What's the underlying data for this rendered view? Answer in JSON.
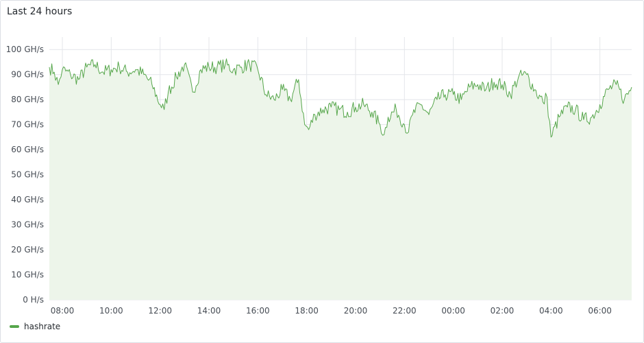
{
  "panel": {
    "title": "Last 24 hours"
  },
  "colors": {
    "series": "#56a64b",
    "fill": "#edf5ea",
    "grid": "#e4e6ea",
    "text": "#464c54"
  },
  "chart_data": {
    "type": "area",
    "title": "Last 24 hours",
    "xlabel": "",
    "ylabel": "",
    "x_range": [
      "07:28",
      "07:18 (+1 day)"
    ],
    "ylim": [
      0,
      105
    ],
    "y_ticks": [
      0,
      10,
      20,
      30,
      40,
      50,
      60,
      70,
      80,
      90,
      100
    ],
    "y_tick_labels": [
      "0 H/s",
      "10 GH/s",
      "20 GH/s",
      "30 GH/s",
      "40 GH/s",
      "50 GH/s",
      "60 GH/s",
      "70 GH/s",
      "80 GH/s",
      "90 GH/s",
      "100 GH/s"
    ],
    "x_tick_labels": [
      "08:00",
      "10:00",
      "12:00",
      "14:00",
      "16:00",
      "18:00",
      "20:00",
      "22:00",
      "00:00",
      "02:00",
      "04:00",
      "06:00"
    ],
    "grid": true,
    "legend": "bottom-left",
    "series": [
      {
        "name": "hashrate",
        "unit": "GH/s",
        "x": [
          "07:28",
          "07:40",
          "07:50",
          "08:00",
          "08:20",
          "08:40",
          "09:00",
          "09:20",
          "09:40",
          "10:00",
          "10:20",
          "10:40",
          "11:00",
          "11:20",
          "11:40",
          "12:00",
          "12:10",
          "12:20",
          "12:40",
          "13:00",
          "13:20",
          "13:40",
          "14:00",
          "14:20",
          "14:40",
          "15:00",
          "15:20",
          "15:40",
          "16:00",
          "16:20",
          "16:40",
          "17:00",
          "17:20",
          "17:40",
          "17:55",
          "18:05",
          "18:20",
          "18:40",
          "19:00",
          "19:20",
          "19:40",
          "20:00",
          "20:20",
          "20:40",
          "21:00",
          "21:10",
          "21:20",
          "21:40",
          "22:00",
          "22:10",
          "22:20",
          "22:40",
          "23:00",
          "23:20",
          "23:40",
          "00:00",
          "00:20",
          "00:40",
          "01:00",
          "01:20",
          "01:40",
          "02:00",
          "02:20",
          "02:40",
          "03:00",
          "03:20",
          "03:40",
          "03:50",
          "04:00",
          "04:20",
          "04:40",
          "05:00",
          "05:20",
          "05:40",
          "06:00",
          "06:20",
          "06:40",
          "07:00",
          "07:18"
        ],
        "values": [
          93,
          91,
          86,
          92,
          90,
          88,
          93,
          94,
          91,
          92,
          93,
          91,
          92,
          90,
          86,
          78,
          76,
          83,
          89,
          94,
          83,
          92,
          93,
          93,
          94,
          92,
          93,
          94,
          92,
          82,
          80,
          84,
          80,
          88,
          70,
          68,
          74,
          76,
          77,
          76,
          75,
          77,
          78,
          75,
          70,
          66,
          73,
          76,
          70,
          67,
          74,
          78,
          74,
          80,
          82,
          82,
          80,
          85,
          86,
          84,
          87,
          86,
          82,
          89,
          90,
          84,
          79,
          81,
          65,
          73,
          77,
          76,
          72,
          73,
          78,
          84,
          86,
          80,
          85
        ]
      }
    ]
  }
}
